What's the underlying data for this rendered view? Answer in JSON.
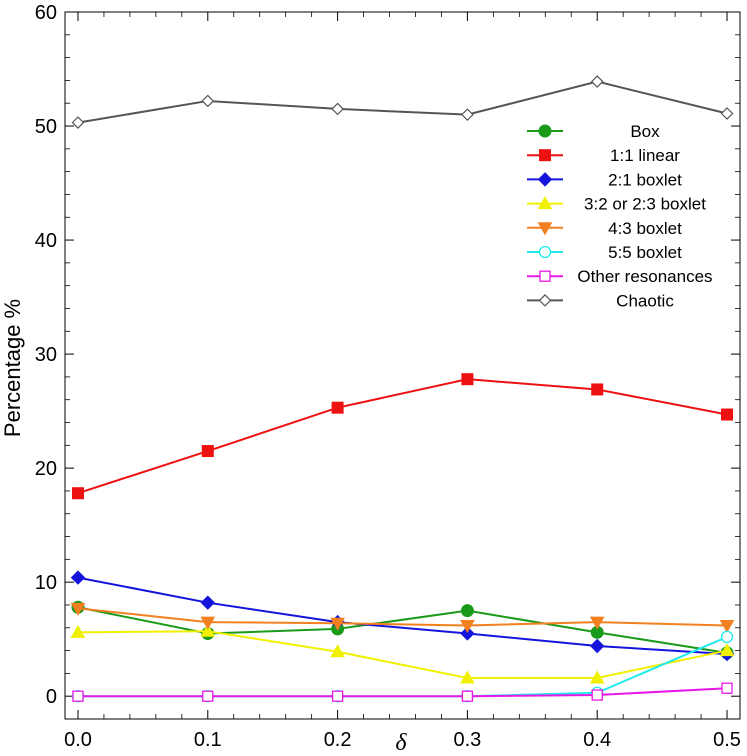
{
  "chart_data": {
    "type": "line",
    "title": "",
    "xlabel": "δ",
    "ylabel": "Percentage %",
    "xlim": [
      -0.01,
      0.51
    ],
    "ylim": [
      -2,
      60
    ],
    "x_ticks": [
      "0.0",
      "0.1",
      "0.2",
      "0.3",
      "0.4",
      "0.5"
    ],
    "y_ticks": [
      "0",
      "10",
      "20",
      "30",
      "40",
      "50",
      "60"
    ],
    "x": [
      0.0,
      0.1,
      0.2,
      0.3,
      0.4,
      0.5
    ],
    "grid": false,
    "legend_position": "top-right",
    "series": [
      {
        "name": "Box",
        "color": "#1a9a1a",
        "marker": "circle",
        "values": [
          7.8,
          5.5,
          5.9,
          7.5,
          5.6,
          3.8
        ]
      },
      {
        "name": "1:1 linear",
        "color": "#ee1111",
        "marker": "square",
        "values": [
          17.8,
          21.5,
          25.3,
          27.8,
          26.9,
          24.7
        ]
      },
      {
        "name": "2:1 boxlet",
        "color": "#1414dc",
        "marker": "diamond",
        "values": [
          10.4,
          8.2,
          6.5,
          5.5,
          4.4,
          3.7
        ]
      },
      {
        "name": "3:2 or 2:3 boxlet",
        "color": "#f0f000",
        "marker": "triangle-up",
        "values": [
          5.6,
          5.7,
          3.9,
          1.6,
          1.6,
          4.0
        ]
      },
      {
        "name": "4:3 boxlet",
        "color": "#f28020",
        "marker": "triangle-down",
        "values": [
          7.7,
          6.5,
          6.4,
          6.2,
          6.5,
          6.2
        ]
      },
      {
        "name": "5:5 boxlet",
        "color": "#22eaea",
        "marker": "circle-open",
        "values": [
          0.0,
          0.0,
          0.0,
          0.0,
          0.3,
          5.2
        ]
      },
      {
        "name": "Other resonances",
        "color": "#e619e6",
        "marker": "square-open",
        "values": [
          0.0,
          0.0,
          0.0,
          0.0,
          0.1,
          0.7
        ]
      },
      {
        "name": "Chaotic",
        "color": "#555555",
        "marker": "diamond-open",
        "values": [
          50.3,
          52.2,
          51.5,
          51.0,
          53.9,
          51.1
        ]
      }
    ]
  }
}
